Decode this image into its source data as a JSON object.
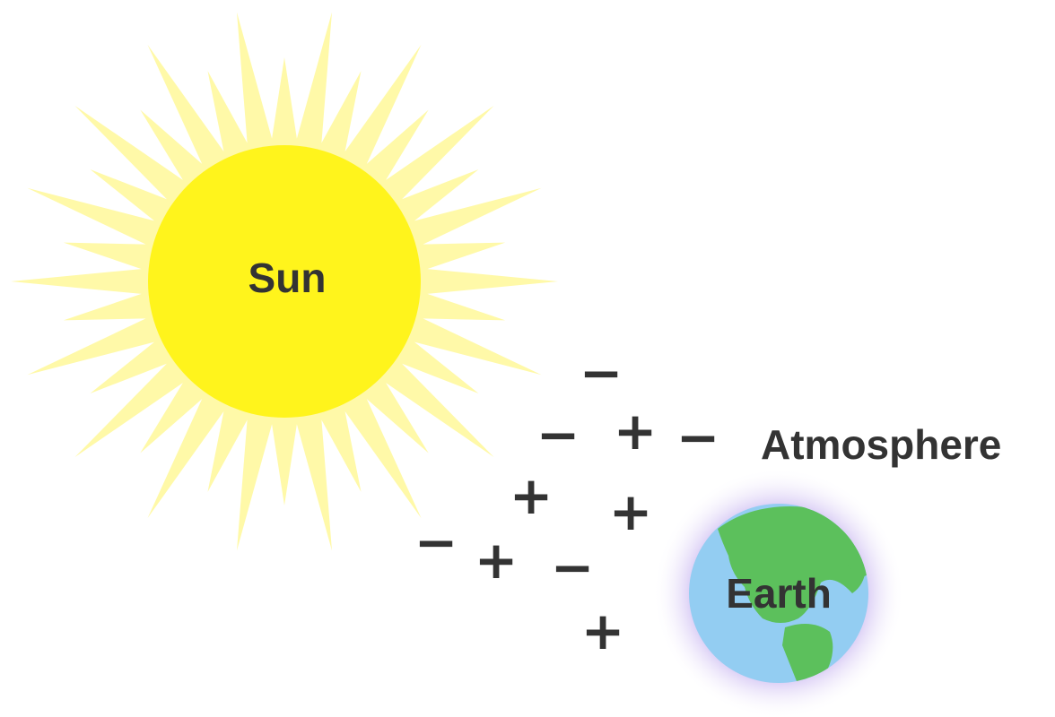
{
  "labels": {
    "sun": "Sun",
    "earth": "Earth",
    "atmosphere": "Atmosphere"
  },
  "charges": [
    "−",
    "−",
    "+",
    "−",
    "+",
    "+",
    "−",
    "+",
    "−",
    "+"
  ]
}
